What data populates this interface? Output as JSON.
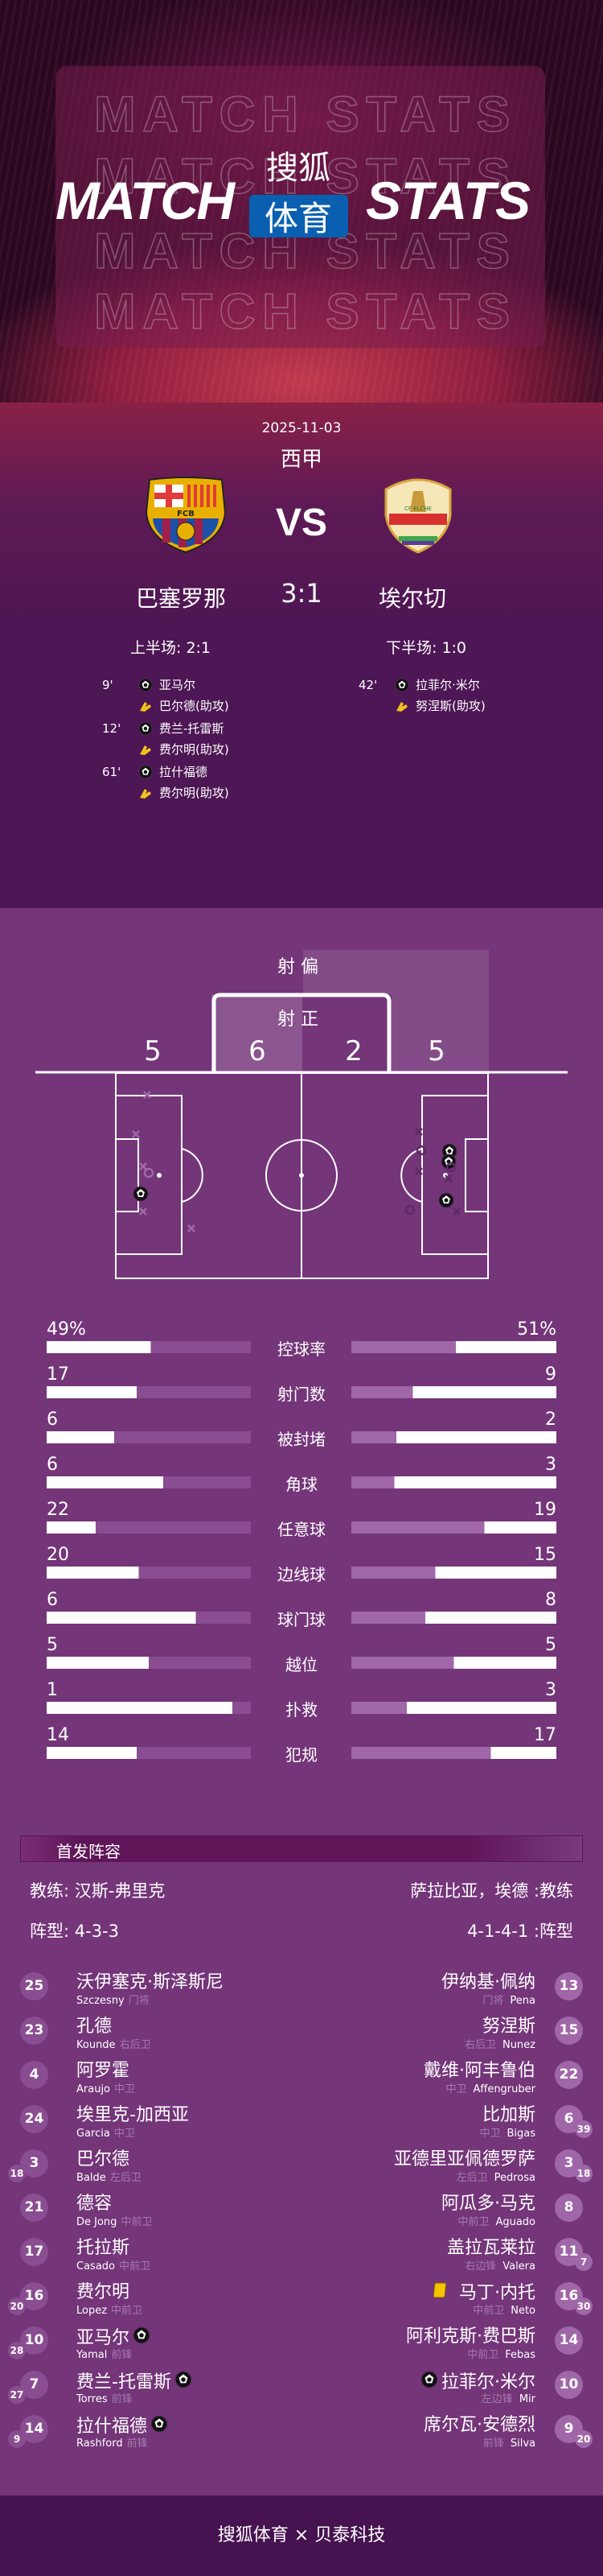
{
  "header": {
    "title_left": "MATCH",
    "title_right": "STATS",
    "brand_top": "搜狐",
    "brand_box": "体育",
    "watermark": "MATCH STATS",
    "brand_blue": "#0a5fb0"
  },
  "match": {
    "date": "2025-11-03",
    "league": "西甲",
    "vs": "VS",
    "home": {
      "name": "巴塞罗那",
      "crest": "FCB"
    },
    "away": {
      "name": "埃尔切",
      "crest": "CF ELCHE"
    },
    "score": "3:1",
    "first_half": "上半场: 2:1",
    "second_half": "下半场: 1:0"
  },
  "goals": {
    "home": [
      {
        "minute": "9'",
        "scorer": "亚马尔",
        "assist": "巴尔德(助攻)"
      },
      {
        "minute": "12'",
        "scorer": "费兰-托雷斯",
        "assist": "费尔明(助攻)"
      },
      {
        "minute": "61'",
        "scorer": "拉什福德",
        "assist": "费尔明(助攻)"
      }
    ],
    "away": [
      {
        "minute": "42'",
        "scorer": "拉菲尔·米尔",
        "assist": "努涅斯(助攻)"
      }
    ]
  },
  "shots": {
    "off_label": "射 偏",
    "on_label": "射 正",
    "home_off": "5",
    "home_on": "6",
    "away_on": "2",
    "away_off": "5"
  },
  "stats": [
    {
      "label": "控球率",
      "home": "49%",
      "away": "51%",
      "home_fill": 0.51,
      "away_fill": 0.49
    },
    {
      "label": "射门数",
      "home": "17",
      "away": "9",
      "home_fill": 0.44,
      "away_fill": 0.7
    },
    {
      "label": "被封堵",
      "home": "6",
      "away": "2",
      "home_fill": 0.33,
      "away_fill": 0.78
    },
    {
      "label": "角球",
      "home": "6",
      "away": "3",
      "home_fill": 0.57,
      "away_fill": 0.79
    },
    {
      "label": "任意球",
      "home": "22",
      "away": "19",
      "home_fill": 0.24,
      "away_fill": 0.35
    },
    {
      "label": "边线球",
      "home": "20",
      "away": "15",
      "home_fill": 0.45,
      "away_fill": 0.59
    },
    {
      "label": "球门球",
      "home": "6",
      "away": "8",
      "home_fill": 0.73,
      "away_fill": 0.64
    },
    {
      "label": "越位",
      "home": "5",
      "away": "5",
      "home_fill": 0.5,
      "away_fill": 0.5
    },
    {
      "label": "扑救",
      "home": "1",
      "away": "3",
      "home_fill": 0.91,
      "away_fill": 0.73
    },
    {
      "label": "犯规",
      "home": "14",
      "away": "17",
      "home_fill": 0.44,
      "away_fill": 0.32
    }
  ],
  "lineup": {
    "title": "首发阵容",
    "home_coach": "教练: 汉斯-弗里克",
    "away_coach": "萨拉比亚，埃德 :教练",
    "home_formation": "阵型: 4-3-3",
    "away_formation": "4-1-4-1 :阵型",
    "home": [
      {
        "num": "25",
        "name": "沃伊塞克·斯泽斯尼",
        "en": "Szczesny",
        "pos": "门将"
      },
      {
        "num": "23",
        "name": "孔德",
        "en": "Kounde",
        "pos": "右后卫"
      },
      {
        "num": "4",
        "name": "阿罗霍",
        "en": "Araujo",
        "pos": "中卫"
      },
      {
        "num": "24",
        "name": "埃里克-加西亚",
        "en": "Garcia",
        "pos": "中卫"
      },
      {
        "num": "3",
        "name": "巴尔德",
        "en": "Balde",
        "pos": "左后卫",
        "sub": "18"
      },
      {
        "num": "21",
        "name": "德容",
        "en": "De Jong",
        "pos": "中前卫"
      },
      {
        "num": "17",
        "name": "托拉斯",
        "en": "Casado",
        "pos": "中前卫"
      },
      {
        "num": "16",
        "name": "费尔明",
        "en": "Lopez",
        "pos": "中前卫",
        "sub": "20"
      },
      {
        "num": "10",
        "name": "亚马尔",
        "en": "Yamal",
        "pos": "前锋",
        "sub": "28",
        "goal": true
      },
      {
        "num": "7",
        "name": "费兰-托雷斯",
        "en": "Torres",
        "pos": "前锋",
        "sub": "27",
        "goal": true
      },
      {
        "num": "14",
        "name": "拉什福德",
        "en": "Rashford",
        "pos": "前锋",
        "sub": "9",
        "goal": true
      }
    ],
    "away": [
      {
        "num": "13",
        "name": "伊纳基·佩纳",
        "en": "Pena",
        "pos": "门将"
      },
      {
        "num": "15",
        "name": "努涅斯",
        "en": "Nunez",
        "pos": "右后卫"
      },
      {
        "num": "22",
        "name": "戴维·阿丰鲁伯",
        "en": "Affengruber",
        "pos": "中卫"
      },
      {
        "num": "6",
        "name": "比加斯",
        "en": "Bigas",
        "pos": "中卫",
        "sub": "39"
      },
      {
        "num": "3",
        "name": "亚德里亚佩德罗萨",
        "en": "Pedrosa",
        "pos": "左后卫",
        "sub": "18"
      },
      {
        "num": "8",
        "name": "阿瓜多·马克",
        "en": "Aguado",
        "pos": "中前卫"
      },
      {
        "num": "11",
        "name": "盖拉瓦莱拉",
        "en": "Valera",
        "pos": "右边锋",
        "sub": "7"
      },
      {
        "num": "16",
        "name": "马丁·内托",
        "en": "Neto",
        "pos": "中前卫",
        "sub": "30",
        "yellow_card": true
      },
      {
        "num": "14",
        "name": "阿利克斯·费巴斯",
        "en": "Febas",
        "pos": "中前卫"
      },
      {
        "num": "10",
        "name": "拉菲尔·米尔",
        "en": "Mir",
        "pos": "左边锋",
        "goal": true
      },
      {
        "num": "9",
        "name": "席尔瓦·安德烈",
        "en": "Silva",
        "pos": "前锋",
        "sub": "20"
      }
    ]
  },
  "footer": {
    "text": "搜狐体育 × 贝泰科技"
  },
  "colors": {
    "upper_bg": "#4d1654",
    "main_bg": "#743579",
    "footer_bg": "#461250",
    "home_bar_rest": "#8a4d91",
    "away_bar_rest": "#a067a8",
    "yellow_card": "#f5c400"
  }
}
